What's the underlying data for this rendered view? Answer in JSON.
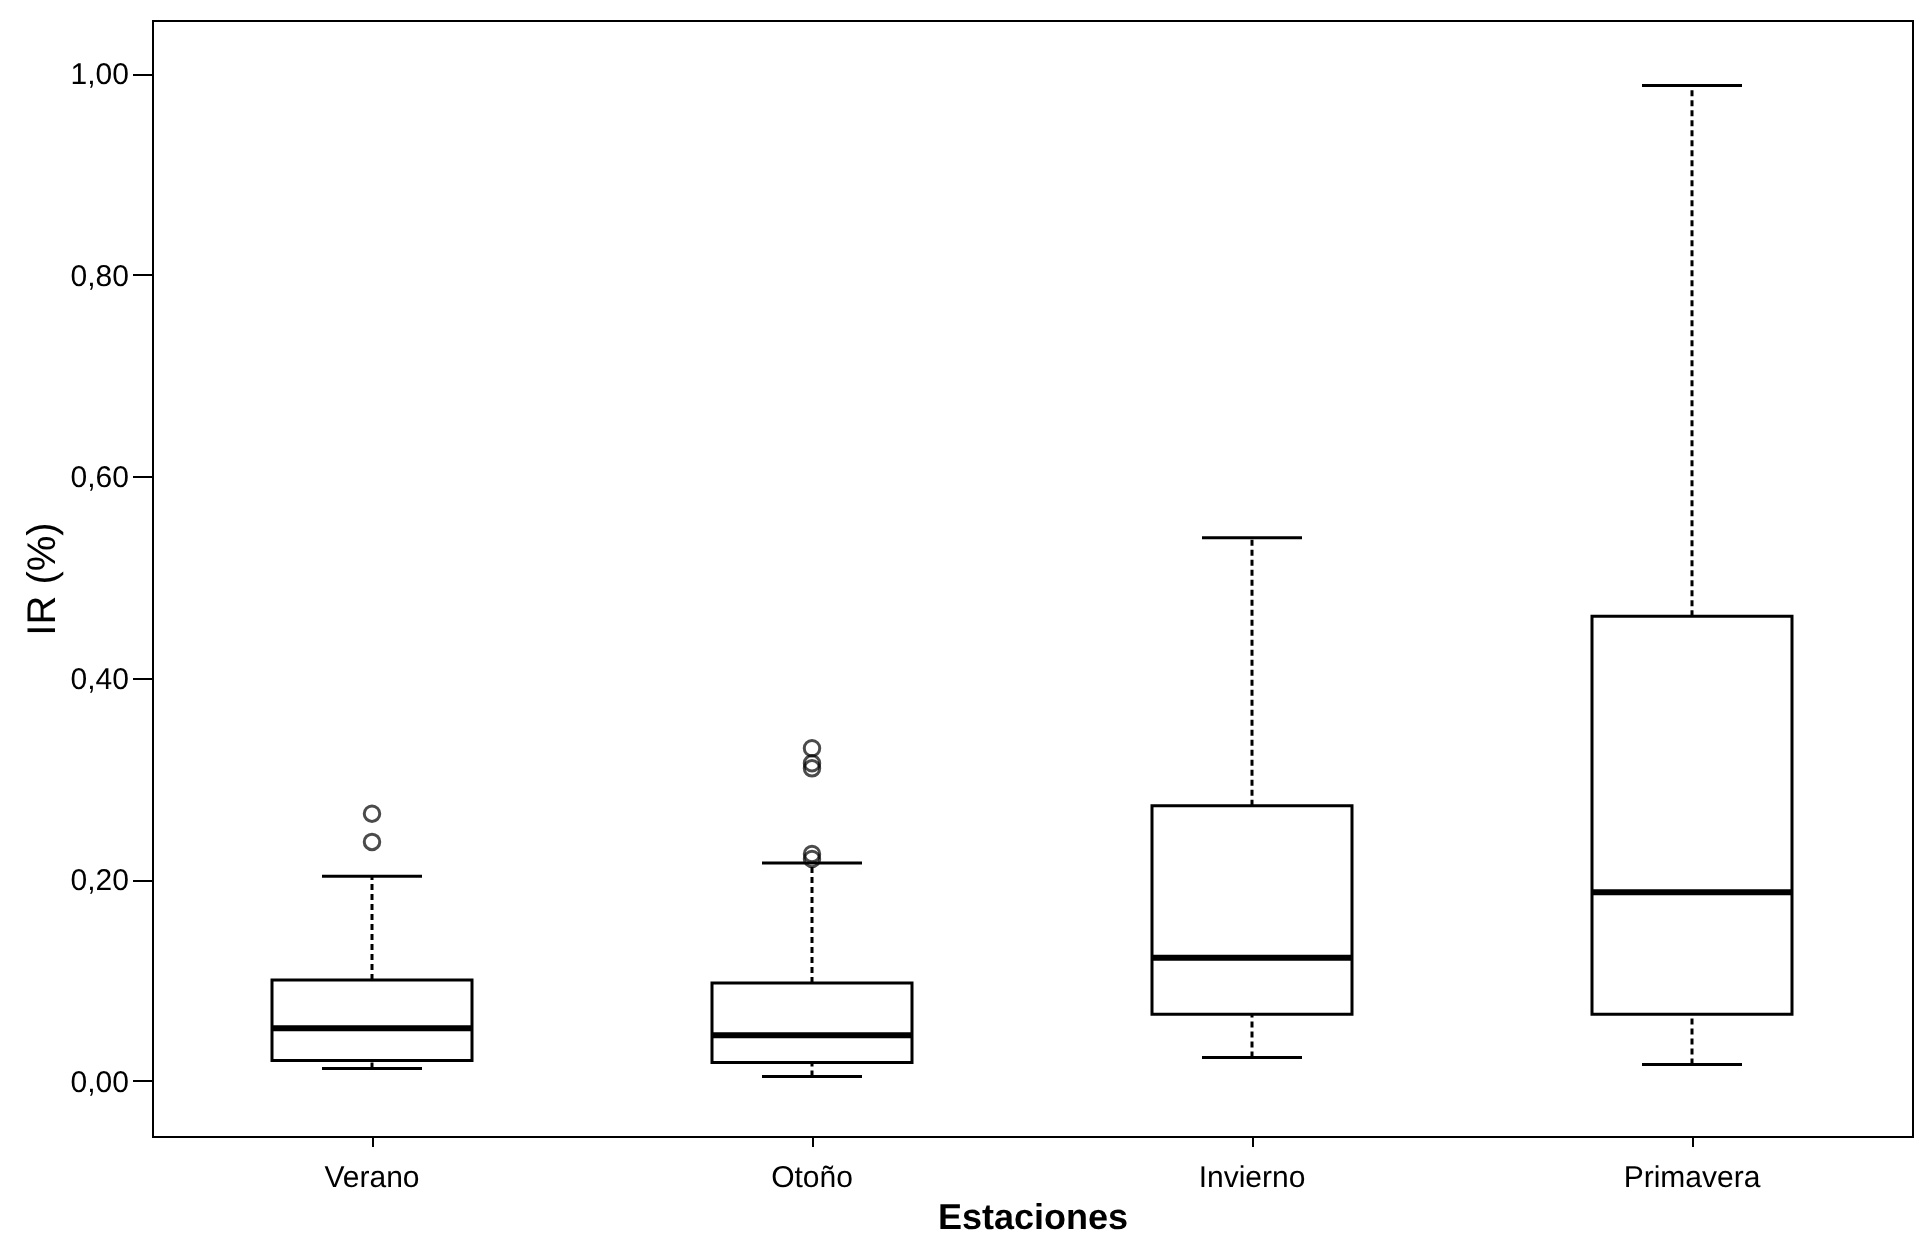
{
  "chart_data": {
    "type": "box",
    "xlabel": "Estaciones",
    "ylabel": "IR (%)",
    "categories": [
      "Verano",
      "Otoño",
      "Invierno",
      "Primavera"
    ],
    "boxes": [
      {
        "low": 0.012,
        "q1": 0.02,
        "median": 0.052,
        "q3": 0.1,
        "high": 0.203,
        "outliers": [
          0.237,
          0.265
        ]
      },
      {
        "low": 0.004,
        "q1": 0.018,
        "median": 0.045,
        "q3": 0.097,
        "high": 0.216,
        "outliers": [
          0.22,
          0.225,
          0.31,
          0.315,
          0.33
        ]
      },
      {
        "low": 0.023,
        "q1": 0.066,
        "median": 0.122,
        "q3": 0.273,
        "high": 0.539
      },
      {
        "low": 0.016,
        "q1": 0.066,
        "median": 0.187,
        "q3": 0.461,
        "high": 0.988
      }
    ],
    "ylim": [
      -0.055,
      1.053
    ],
    "yticks": [
      {
        "value": 0,
        "label": "0,00"
      },
      {
        "value": 0.2,
        "label": "0,20"
      },
      {
        "value": 0.4,
        "label": "0,40"
      },
      {
        "value": 0.6,
        "label": "0,60"
      },
      {
        "value": 0.8,
        "label": "0,80"
      },
      {
        "value": 1,
        "label": "1,00"
      }
    ],
    "grid": false,
    "line_style": "dashed"
  }
}
